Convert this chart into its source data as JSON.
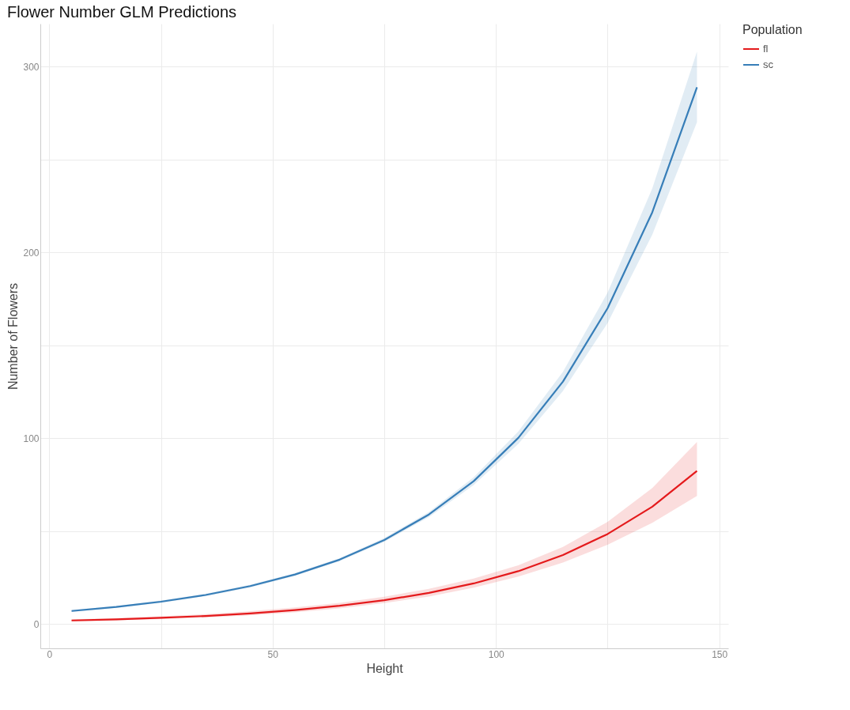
{
  "chart_data": {
    "type": "line",
    "title": "Flower Number GLM Predictions",
    "xlabel": "Height",
    "ylabel": "Number of Flowers",
    "legend_title": "Population",
    "legend": "right",
    "grid": true,
    "line_style": "solid",
    "marker": "none",
    "x": [
      5,
      15,
      25,
      35,
      45,
      55,
      65,
      75,
      85,
      95,
      105,
      115,
      125,
      135,
      145
    ],
    "xlim": [
      -2,
      152
    ],
    "xticks": [
      0,
      {
        "value": 25,
        "label": null
      },
      50,
      {
        "value": 75,
        "label": null
      },
      100,
      {
        "value": 125,
        "label": null
      },
      150
    ],
    "ylim": [
      -13,
      323
    ],
    "yticks": [
      0,
      {
        "value": 50,
        "label": null
      },
      100,
      {
        "value": 150,
        "label": null
      },
      200,
      {
        "value": 250,
        "label": null
      },
      300
    ],
    "series": [
      {
        "name": "fl",
        "color": "#e41a1c",
        "values": [
          2.0,
          2.6,
          3.4,
          4.4,
          5.8,
          7.6,
          9.9,
          12.9,
          16.8,
          21.9,
          28.5,
          37.2,
          48.5,
          63.2,
          82.4
        ],
        "lower": [
          1.5,
          2.0,
          2.7,
          3.6,
          4.8,
          6.4,
          8.5,
          11.3,
          14.9,
          19.6,
          25.6,
          33.2,
          42.7,
          54.5,
          69
        ],
        "upper": [
          2.6,
          3.3,
          4.2,
          5.4,
          7.0,
          9.0,
          11.5,
          14.8,
          19.0,
          24.5,
          31.7,
          41.6,
          55.0,
          73.2,
          98
        ]
      },
      {
        "name": "sc",
        "color": "#377eb8",
        "values": [
          7.1,
          9.3,
          12.1,
          15.7,
          20.5,
          26.7,
          34.7,
          45.3,
          59.0,
          76.9,
          100.2,
          130.5,
          170.0,
          221.6,
          288.8
        ],
        "lower": [
          6.6,
          8.8,
          11.5,
          15.1,
          19.8,
          26.0,
          33.9,
          44.3,
          57.6,
          74.8,
          96.9,
          125.4,
          162.0,
          209.5,
          270
        ],
        "upper": [
          7.6,
          9.8,
          12.7,
          16.3,
          21.2,
          27.4,
          35.5,
          46.3,
          60.4,
          79.0,
          103.6,
          135.8,
          178.4,
          234.4,
          308
        ]
      }
    ]
  }
}
